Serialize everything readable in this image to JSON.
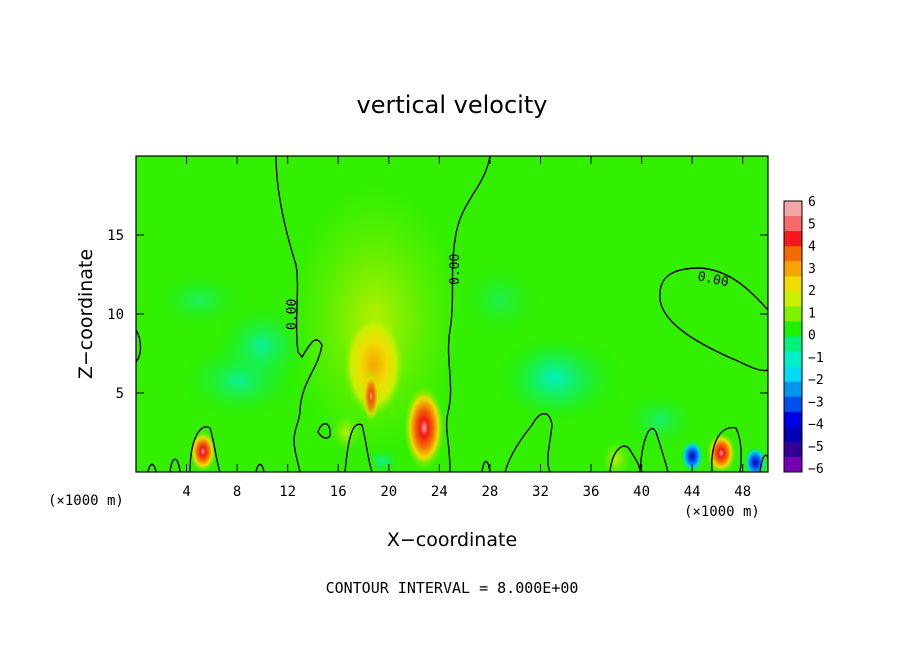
{
  "chart_data": {
    "type": "heatmap",
    "title": "vertical velocity",
    "xlabel": "X−coordinate",
    "ylabel": "Z−coordinate",
    "x_unit_left": "(×1000 m)",
    "x_unit_right": "(×1000 m)",
    "xlim": [
      0,
      50
    ],
    "ylim": [
      0,
      20
    ],
    "x_ticks": [
      {
        "value": 4,
        "label": "4"
      },
      {
        "value": 8,
        "label": "8"
      },
      {
        "value": 12,
        "label": "12"
      },
      {
        "value": 16,
        "label": "16"
      },
      {
        "value": 20,
        "label": "20"
      },
      {
        "value": 24,
        "label": "24"
      },
      {
        "value": 28,
        "label": "28"
      },
      {
        "value": 32,
        "label": "32"
      },
      {
        "value": 36,
        "label": "36"
      },
      {
        "value": 40,
        "label": "40"
      },
      {
        "value": 44,
        "label": "44"
      },
      {
        "value": 48,
        "label": "48"
      }
    ],
    "y_ticks": [
      {
        "value": 5,
        "label": "5"
      },
      {
        "value": 10,
        "label": "10"
      },
      {
        "value": 15,
        "label": "15"
      }
    ],
    "colorbar": {
      "labels": [
        "6",
        "5",
        "4",
        "3",
        "2",
        "1",
        "0",
        "−1",
        "−2",
        "−3",
        "−4",
        "−5",
        "−6"
      ],
      "colors": [
        "#f4a6a6",
        "#f56a6a",
        "#f51818",
        "#f26a00",
        "#f5a500",
        "#f0dc00",
        "#c8f000",
        "#7ef000",
        "#1ef000",
        "#00f07a",
        "#00f0c8",
        "#00dcf0",
        "#0096f0",
        "#0050f0",
        "#0000e6",
        "#0000b4",
        "#320096",
        "#7800b4"
      ]
    },
    "contour_label": "0.00",
    "footer": "CONTOUR INTERVAL = 8.000E+00",
    "features": [
      {
        "x": 18.6,
        "z": 6.5,
        "value": 3.2
      },
      {
        "x": 22.8,
        "z": 2.8,
        "value": 5.0
      },
      {
        "x": 16.6,
        "z": 2.5,
        "value": 1.5
      },
      {
        "x": 5.3,
        "z": 1.3,
        "value": 3.0
      },
      {
        "x": 46.3,
        "z": 1.2,
        "value": 3.5
      },
      {
        "x": 44.0,
        "z": 1.0,
        "value": -4.0
      },
      {
        "x": 38.0,
        "z": 0.8,
        "value": 1.0
      },
      {
        "x": 49.0,
        "z": 0.6,
        "value": -3.0
      },
      {
        "x": 19.5,
        "z": 0.7,
        "value": -2.0
      },
      {
        "x": 10.0,
        "z": 8.0,
        "value": -1.0
      },
      {
        "x": 33.0,
        "z": 6.0,
        "value": -1.0
      }
    ]
  }
}
